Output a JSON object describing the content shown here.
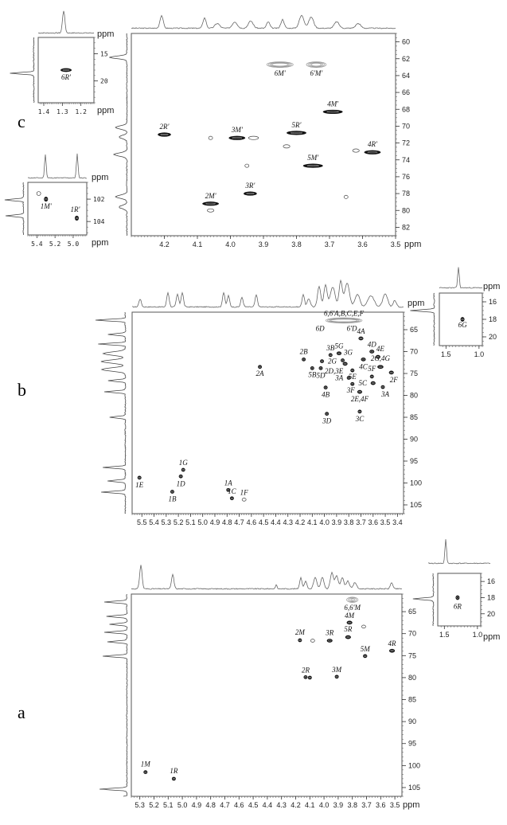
{
  "figure": {
    "panels": [
      {
        "id": "c",
        "letter": "c"
      },
      {
        "id": "b",
        "letter": "b"
      },
      {
        "id": "a",
        "letter": "a"
      }
    ],
    "unit": "ppm"
  },
  "chart_data": [
    {
      "panel": "c",
      "type": "scatter",
      "title": "",
      "xlabel": "ppm",
      "ylabel": "ppm",
      "xlim": [
        4.3,
        3.5
      ],
      "ylim": [
        59,
        83
      ],
      "xticks": [
        "4.2",
        "4.1",
        "4.0",
        "3.9",
        "3.8",
        "3.7",
        "3.6",
        "3.5"
      ],
      "yticks": [
        "60",
        "62",
        "64",
        "66",
        "68",
        "70",
        "72",
        "74",
        "76",
        "78",
        "80",
        "82"
      ],
      "grid": false,
      "points": [
        {
          "label": "6M'",
          "x": 3.85,
          "y": 62.7,
          "w": 0.08,
          "style": "gray"
        },
        {
          "label": "6'M'",
          "x": 3.74,
          "y": 62.7,
          "w": 0.06,
          "style": "gray"
        },
        {
          "label": "4M'",
          "x": 3.69,
          "y": 68.3,
          "w": 0.06,
          "style": "dark"
        },
        {
          "label": "2R'",
          "x": 4.2,
          "y": 71.0,
          "w": 0.04,
          "style": "dark"
        },
        {
          "label": "3M'",
          "x": 3.98,
          "y": 71.4,
          "w": 0.05,
          "style": "dark"
        },
        {
          "label": "",
          "x": 3.93,
          "y": 71.4,
          "w": 0.03,
          "style": "light"
        },
        {
          "label": "",
          "x": 4.06,
          "y": 71.4,
          "w": 0.01,
          "style": "light"
        },
        {
          "label": "5R'",
          "x": 3.8,
          "y": 70.8,
          "w": 0.06,
          "style": "dark"
        },
        {
          "label": "",
          "x": 3.83,
          "y": 72.4,
          "w": 0.02,
          "style": "light"
        },
        {
          "label": "4R'",
          "x": 3.57,
          "y": 73.1,
          "w": 0.05,
          "style": "dark"
        },
        {
          "label": "",
          "x": 3.62,
          "y": 72.9,
          "w": 0.02,
          "style": "light"
        },
        {
          "label": "5M'",
          "x": 3.75,
          "y": 74.7,
          "w": 0.06,
          "style": "dark"
        },
        {
          "label": "",
          "x": 3.95,
          "y": 74.7,
          "w": 0.01,
          "style": "light"
        },
        {
          "label": "3R'",
          "x": 3.94,
          "y": 78.0,
          "w": 0.04,
          "style": "dark"
        },
        {
          "label": "",
          "x": 3.65,
          "y": 78.4,
          "w": 0.01,
          "style": "light"
        },
        {
          "label": "2M'",
          "x": 4.06,
          "y": 79.2,
          "w": 0.05,
          "style": "dark"
        },
        {
          "label": "",
          "x": 4.06,
          "y": 80.0,
          "w": 0.02,
          "style": "light"
        }
      ],
      "insets": [
        {
          "name": "methyl-inset",
          "xlim": [
            1.43,
            1.13
          ],
          "ylim": [
            12,
            24
          ],
          "xticks": [
            "1.4",
            "1.3",
            "1.2"
          ],
          "yticks": [
            "15",
            "20"
          ],
          "points": [
            {
              "label": "6R'",
              "x": 1.28,
              "y": 18.0,
              "w": 0.06,
              "style": "dark"
            }
          ]
        },
        {
          "name": "anomeric-inset",
          "xlim": [
            5.5,
            4.85
          ],
          "ylim": [
            100.5,
            105.2
          ],
          "xticks": [
            "5.4",
            "5.2",
            "5.0"
          ],
          "yticks": [
            "102",
            "104"
          ],
          "points": [
            {
              "label": "",
              "x": 5.38,
              "y": 101.5,
              "w": 0.01,
              "style": "light"
            },
            {
              "label": "1M'",
              "x": 5.3,
              "y": 102.0,
              "w": 0.03,
              "style": "dark"
            },
            {
              "label": "1R'",
              "x": 4.96,
              "y": 103.7,
              "w": 0.03,
              "style": "dark"
            }
          ]
        }
      ]
    },
    {
      "panel": "b",
      "type": "scatter",
      "xlabel": "ppm",
      "ylabel": "ppm",
      "xlim": [
        5.58,
        3.35
      ],
      "ylim": [
        61,
        107
      ],
      "xticks": [
        "5.5",
        "5.4",
        "5.3",
        "5.2",
        "5.1",
        "5.0",
        "4.9",
        "4.8",
        "4.7",
        "4.6",
        "4.5",
        "4.4",
        "4.3",
        "4.2",
        "4.1",
        "4.0",
        "3.9",
        "3.8",
        "3.7",
        "3.6",
        "3.5",
        "3.4"
      ],
      "yticks": [
        "65",
        "70",
        "75",
        "80",
        "85",
        "90",
        "95",
        "100",
        "105"
      ],
      "grid": false,
      "annotations": [
        "6,6'A,B,C,E,F",
        "6D",
        "6'D"
      ],
      "points": [
        {
          "label": "6,6'A,B,C,E,F",
          "x": 3.84,
          "y": 62.9,
          "w": 0.3,
          "style": "gray"
        },
        {
          "label": "4A",
          "x": 3.7,
          "y": 67.0,
          "w": 0.04,
          "style": "dark"
        },
        {
          "label": "4D",
          "x": 3.61,
          "y": 70.0,
          "w": 0.04,
          "style": "dark"
        },
        {
          "label": "3B",
          "x": 3.95,
          "y": 70.8,
          "w": 0.03,
          "style": "dark"
        },
        {
          "label": "5G",
          "x": 3.88,
          "y": 70.4,
          "w": 0.04,
          "style": "dark"
        },
        {
          "label": "2B",
          "x": 4.17,
          "y": 71.8,
          "w": 0.03,
          "style": "dark"
        },
        {
          "label": "2G",
          "x": 4.02,
          "y": 72.2,
          "w": 0.02,
          "style": "dark"
        },
        {
          "label": "3G",
          "x": 3.85,
          "y": 72.0,
          "w": 0.03,
          "style": "dark"
        },
        {
          "label": "4E",
          "x": 3.56,
          "y": 71.2,
          "w": 0.04,
          "style": "dark"
        },
        {
          "label": "4C",
          "x": 3.68,
          "y": 71.8,
          "w": 0.04,
          "style": "dark"
        },
        {
          "label": "2D,3E",
          "x": 3.83,
          "y": 72.8,
          "w": 0.04,
          "style": "dark"
        },
        {
          "label": "2G,4G",
          "x": 3.54,
          "y": 73.5,
          "w": 0.05,
          "style": "dark"
        },
        {
          "label": "5B",
          "x": 4.1,
          "y": 73.8,
          "w": 0.03,
          "style": "dark"
        },
        {
          "label": "5D",
          "x": 4.03,
          "y": 73.8,
          "w": 0.03,
          "style": "dark"
        },
        {
          "label": "2A",
          "x": 4.53,
          "y": 73.5,
          "w": 0.02,
          "style": "dark"
        },
        {
          "label": "5E",
          "x": 3.77,
          "y": 74.3,
          "w": 0.03,
          "style": "dark"
        },
        {
          "label": "2F",
          "x": 3.45,
          "y": 74.8,
          "w": 0.04,
          "style": "dark"
        },
        {
          "label": "5F",
          "x": 3.61,
          "y": 75.7,
          "w": 0.03,
          "style": "dark"
        },
        {
          "label": "3A",
          "x": 3.8,
          "y": 76.0,
          "w": 0.02,
          "style": "dark"
        },
        {
          "label": "3F",
          "x": 3.77,
          "y": 77.4,
          "w": 0.03,
          "style": "dark"
        },
        {
          "label": "5C",
          "x": 3.6,
          "y": 77.2,
          "w": 0.04,
          "style": "dark"
        },
        {
          "label": "3A",
          "x": 3.52,
          "y": 78.1,
          "w": 0.03,
          "style": "dark"
        },
        {
          "label": "4B",
          "x": 3.99,
          "y": 78.2,
          "w": 0.02,
          "style": "dark"
        },
        {
          "label": "2E,4F",
          "x": 3.71,
          "y": 79.2,
          "w": 0.04,
          "style": "dark"
        },
        {
          "label": "3C",
          "x": 3.71,
          "y": 83.7,
          "w": 0.03,
          "style": "dark"
        },
        {
          "label": "3D",
          "x": 3.98,
          "y": 84.2,
          "w": 0.03,
          "style": "dark"
        },
        {
          "label": "1G",
          "x": 5.16,
          "y": 97.0,
          "w": 0.02,
          "style": "dark"
        },
        {
          "label": "1D",
          "x": 5.18,
          "y": 98.5,
          "w": 0.02,
          "style": "dark"
        },
        {
          "label": "1E",
          "x": 5.52,
          "y": 98.8,
          "w": 0.02,
          "style": "dark"
        },
        {
          "label": "1B",
          "x": 5.25,
          "y": 102.0,
          "w": 0.02,
          "style": "dark"
        },
        {
          "label": "1A",
          "x": 4.79,
          "y": 101.6,
          "w": 0.02,
          "style": "dark"
        },
        {
          "label": "1C",
          "x": 4.76,
          "y": 103.5,
          "w": 0.02,
          "style": "dark"
        },
        {
          "label": "1F",
          "x": 4.66,
          "y": 103.8,
          "w": 0.02,
          "style": "light"
        }
      ],
      "inset": {
        "xlim": [
          1.6,
          0.95
        ],
        "ylim": [
          15,
          21
        ],
        "xticks": [
          "1.5",
          "1.0"
        ],
        "yticks": [
          "16",
          "18",
          "20"
        ],
        "points": [
          {
            "label": "6G",
            "x": 1.25,
            "y": 18.0,
            "w": 0.04,
            "style": "dark"
          }
        ]
      }
    },
    {
      "panel": "a",
      "type": "scatter",
      "xlabel": "ppm",
      "ylabel": "ppm",
      "xlim": [
        5.36,
        3.45
      ],
      "ylim": [
        61,
        107
      ],
      "xticks": [
        "5.3",
        "5.2",
        "5.1",
        "5.0",
        "4.9",
        "4.8",
        "4.7",
        "4.6",
        "4.5",
        "4.4",
        "4.3",
        "4.2",
        "4.1",
        "4.0",
        "3.9",
        "3.8",
        "3.7",
        "3.6",
        "3.5"
      ],
      "yticks": [
        "65",
        "70",
        "75",
        "80",
        "85",
        "90",
        "95",
        "100",
        "105"
      ],
      "grid": false,
      "points": [
        {
          "label": "6,6'M",
          "x": 3.8,
          "y": 62.3,
          "w": 0.08,
          "style": "gray"
        },
        {
          "label": "4M",
          "x": 3.82,
          "y": 67.5,
          "w": 0.04,
          "style": "dark"
        },
        {
          "label": "",
          "x": 3.72,
          "y": 68.4,
          "w": 0.02,
          "style": "light"
        },
        {
          "label": "2M",
          "x": 4.17,
          "y": 71.5,
          "w": 0.02,
          "style": "dark"
        },
        {
          "label": "",
          "x": 4.08,
          "y": 71.6,
          "w": 0.01,
          "style": "light"
        },
        {
          "label": "3R",
          "x": 3.96,
          "y": 71.6,
          "w": 0.04,
          "style": "dark"
        },
        {
          "label": "5R",
          "x": 3.83,
          "y": 70.8,
          "w": 0.04,
          "style": "dark"
        },
        {
          "label": "4R",
          "x": 3.52,
          "y": 73.9,
          "w": 0.04,
          "style": "dark"
        },
        {
          "label": "5M",
          "x": 3.71,
          "y": 75.1,
          "w": 0.03,
          "style": "dark"
        },
        {
          "label": "2R",
          "x": 4.13,
          "y": 79.9,
          "w": 0.02,
          "style": "dark"
        },
        {
          "label": "",
          "x": 4.1,
          "y": 80.0,
          "w": 0.01,
          "style": "dark"
        },
        {
          "label": "3M",
          "x": 3.91,
          "y": 79.8,
          "w": 0.02,
          "style": "dark"
        },
        {
          "label": "1M",
          "x": 5.26,
          "y": 101.5,
          "w": 0.02,
          "style": "dark"
        },
        {
          "label": "1R",
          "x": 5.06,
          "y": 103.0,
          "w": 0.02,
          "style": "dark"
        }
      ],
      "inset": {
        "xlim": [
          1.6,
          0.95
        ],
        "ylim": [
          15,
          21.5
        ],
        "xticks": [
          "1.5",
          "1.0"
        ],
        "yticks": [
          "16",
          "18",
          "20"
        ],
        "points": [
          {
            "label": "6R",
            "x": 1.3,
            "y": 18.0,
            "w": 0.03,
            "style": "dark"
          }
        ]
      }
    }
  ]
}
